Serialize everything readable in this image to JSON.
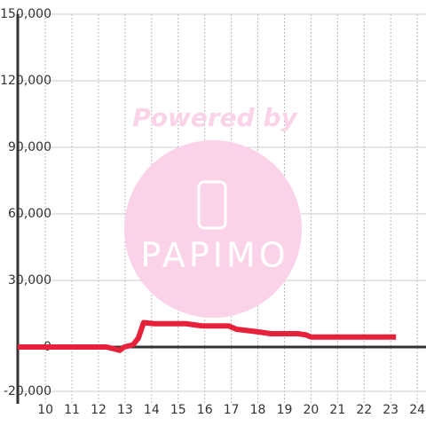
{
  "chart_data": {
    "type": "line",
    "watermark": {
      "top": "Powered by",
      "logo": "PAPIMO"
    },
    "x": [
      8.96,
      11,
      12.3,
      12.65,
      12.8,
      12.97,
      13.3,
      13.5,
      13.7,
      14.1,
      15.3,
      15.9,
      16.9,
      17.2,
      17.55,
      17.9,
      18.5,
      19.5,
      19.8,
      20.0,
      23.2
    ],
    "series": [
      {
        "color": "#e8213a",
        "values": [
          0,
          0,
          0,
          -1000,
          -1500,
          0,
          1000,
          4000,
          11000,
          10500,
          10500,
          9500,
          9500,
          8000,
          7500,
          7000,
          6000,
          6000,
          5500,
          4500,
          4500
        ]
      }
    ],
    "xlim": [
      8.96,
      24.33
    ],
    "ylim": [
      -20000,
      150000
    ],
    "xticks": [
      10,
      11,
      12,
      13,
      14,
      15,
      16,
      17,
      18,
      19,
      20,
      21,
      22,
      23,
      24
    ],
    "yticks": [
      {
        "value": -20000,
        "label": "-20,000"
      },
      0,
      {
        "value": 30000,
        "label": "30,000"
      },
      {
        "value": 60000,
        "label": "60,000"
      },
      {
        "value": 90000,
        "label": "90,000"
      },
      {
        "value": 120000,
        "label": "120,000"
      },
      {
        "value": 150000,
        "label": "150,000"
      }
    ],
    "grid": true
  }
}
